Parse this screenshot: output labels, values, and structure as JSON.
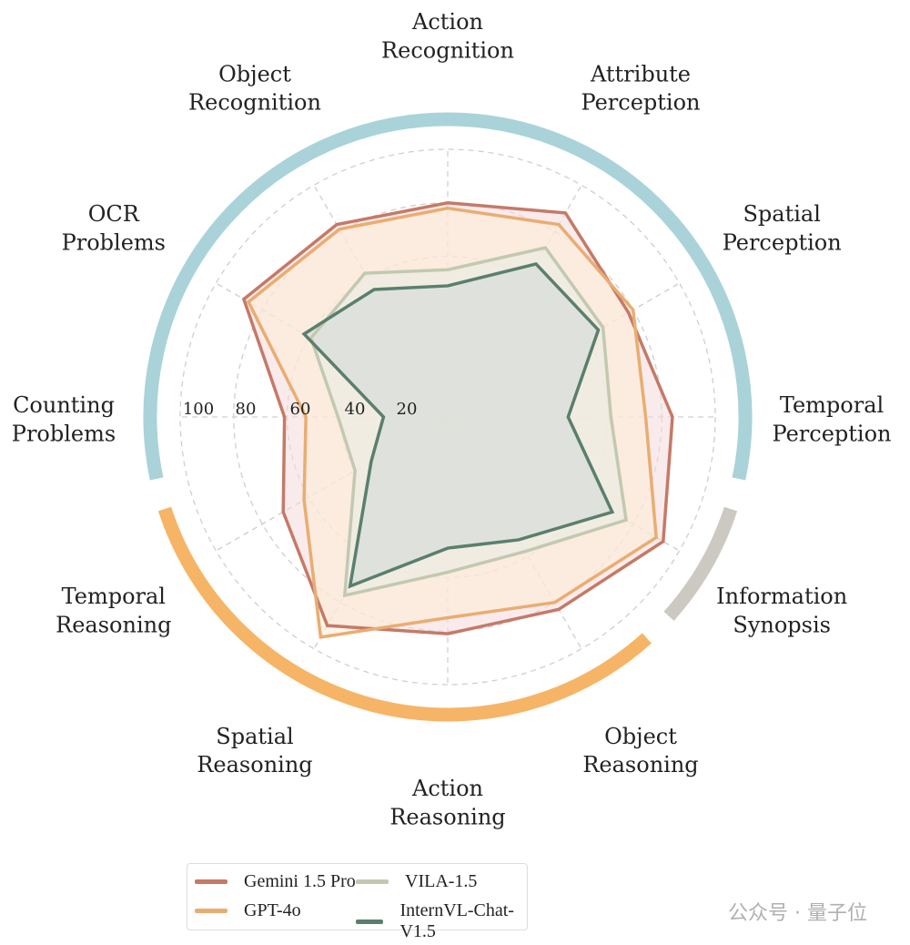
{
  "chart_data": {
    "type": "radar",
    "title": "",
    "categories": [
      "Action Recognition",
      "Attribute Perception",
      "Spatial Perception",
      "Temporal Perception",
      "Information Synopsis",
      "Object Reasoning",
      "Action Reasoning",
      "Spatial Reasoning",
      "Temporal Reasoning",
      "Counting Problems",
      "OCR Problems",
      "Object Recognition"
    ],
    "category_lines": [
      [
        "Action",
        "Recognition"
      ],
      [
        "Attribute",
        "Perception"
      ],
      [
        "Spatial",
        "Perception"
      ],
      [
        "Temporal",
        "Perception"
      ],
      [
        "Information",
        "Synopsis"
      ],
      [
        "Object",
        "Reasoning"
      ],
      [
        "Action",
        "Reasoning"
      ],
      [
        "Spatial",
        "Reasoning"
      ],
      [
        "Temporal",
        "Reasoning"
      ],
      [
        "Counting",
        "Problems"
      ],
      [
        "OCR",
        "Problems"
      ],
      [
        "Object",
        "Recognition"
      ]
    ],
    "radial_ticks": [
      "100",
      "80",
      "60",
      "40",
      "20"
    ],
    "rlim": [
      0,
      100
    ],
    "grid": true,
    "legend_position": "bottom",
    "groups": [
      {
        "categories": [
          "Temporal Perception",
          "Spatial Perception",
          "Attribute Perception",
          "Action Recognition",
          "Object Recognition",
          "OCR Problems",
          "Counting Problems"
        ],
        "color": "#a9d3d8"
      },
      {
        "categories": [
          "Information Synopsis"
        ],
        "color": "#cbc9c2"
      },
      {
        "categories": [
          "Object Reasoning",
          "Action Reasoning",
          "Spatial Reasoning",
          "Temporal Reasoning"
        ],
        "color": "#f6b466"
      }
    ],
    "series": [
      {
        "name": "Gemini 1.5 Pro",
        "color": "#c47a68",
        "fill": "#f4dada",
        "values": [
          80,
          88,
          78,
          84,
          93,
          83,
          81,
          90,
          71,
          61,
          88,
          83
        ]
      },
      {
        "name": "GPT-4o",
        "color": "#e9ad72",
        "fill": "#fdecd6",
        "values": [
          78,
          83,
          80,
          74,
          90,
          80,
          75,
          95,
          62,
          53,
          86,
          81
        ]
      },
      {
        "name": "VILA-1.5",
        "color": "#c2c9b1",
        "fill": "#e9ede4",
        "values": [
          55,
          73,
          67,
          61,
          77,
          58,
          58,
          77,
          40,
          41,
          59,
          62
        ]
      },
      {
        "name": "InternVL-Chat-V1.5",
        "color": "#5a7f6d",
        "fill": "#cfdad7",
        "values": [
          49,
          66,
          65,
          45,
          71,
          53,
          49,
          73,
          33,
          24,
          62,
          55
        ]
      }
    ]
  },
  "watermark": "公众号 · 量子位"
}
